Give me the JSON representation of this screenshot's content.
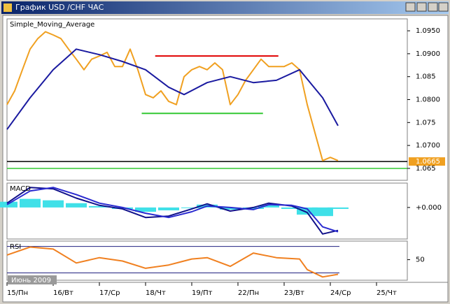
{
  "window": {
    "title": "График USD /CHF  ЧАС"
  },
  "chart_data": [
    {
      "type": "line",
      "label": "Simple_Moving_Average",
      "period_label": "Июнь 2009",
      "xlim": [
        0,
        208
      ],
      "xticks": [
        {
          "value": 0,
          "label": "15/Пн"
        },
        {
          "value": 24,
          "label": "16/Вт"
        },
        {
          "value": 48,
          "label": "17/Ср"
        },
        {
          "value": 72,
          "label": "18/Чт"
        },
        {
          "value": 96,
          "label": "19/Пт"
        },
        {
          "value": 120,
          "label": "22/Пн"
        },
        {
          "value": 144,
          "label": "23/Вт"
        },
        {
          "value": 168,
          "label": "24/Ср"
        },
        {
          "value": 192,
          "label": "25/Чт"
        }
      ],
      "ylim": [
        1.0624,
        1.0976
      ],
      "yticks": [
        {
          "value": 1.095,
          "label": "1.0950"
        },
        {
          "value": 1.09,
          "label": "1.0900"
        },
        1.085,
        {
          "value": 1.08,
          "label": "1.0800"
        },
        1.075,
        {
          "value": 1.07,
          "label": "1.0700"
        },
        1.065
      ],
      "last_price": 1.0665,
      "hlines": [
        {
          "y": 1.0665,
          "color": "#000000"
        },
        {
          "y": 1.065,
          "color": "#32c832"
        }
      ],
      "segments": [
        {
          "x": [
            77,
            141
          ],
          "y": 1.0895,
          "color": "#e00000"
        },
        {
          "x": [
            70,
            133
          ],
          "y": 1.077,
          "color": "#32c832"
        }
      ],
      "series": [
        {
          "color": "#f0a020",
          "x": [
            0,
            4,
            8,
            12,
            16,
            20,
            24,
            28,
            32,
            36,
            40,
            44,
            48,
            52,
            56,
            60,
            64,
            68,
            72,
            76,
            80,
            84,
            88,
            92,
            96,
            100,
            104,
            108,
            112,
            116,
            120,
            124,
            128,
            132,
            136,
            140,
            144,
            148,
            152,
            156,
            160,
            164,
            168,
            172
          ],
          "values": [
            1.0789,
            1.0819,
            1.0865,
            1.091,
            1.0933,
            1.0948,
            1.0941,
            1.0933,
            1.091,
            1.0888,
            1.0865,
            1.0888,
            1.0895,
            1.0903,
            1.0872,
            1.0872,
            1.091,
            1.0865,
            1.0811,
            1.0804,
            1.0819,
            1.0796,
            1.0789,
            1.085,
            1.0865,
            1.0872,
            1.0865,
            1.088,
            1.0865,
            1.0789,
            1.0811,
            1.0842,
            1.0865,
            1.0888,
            1.0872,
            1.0872,
            1.0872,
            1.088,
            1.0865,
            1.0789,
            1.0728,
            1.0667,
            1.0674,
            1.0667
          ]
        },
        {
          "name": "Simple_Moving_Average",
          "color": "#1a1aa0",
          "x": [
            0,
            12,
            24,
            36,
            48,
            60,
            72,
            84,
            92,
            104,
            116,
            128,
            140,
            152,
            164,
            172
          ],
          "values": [
            1.0735,
            1.0804,
            1.0865,
            1.091,
            1.0898,
            1.0883,
            1.0865,
            1.0827,
            1.0811,
            1.0837,
            1.085,
            1.0837,
            1.0842,
            1.0865,
            1.0804,
            1.0743
          ]
        }
      ]
    },
    {
      "type": "line",
      "label": "MACD",
      "ylim": [
        -0.0044,
        0.0034
      ],
      "yticks": [
        {
          "value": 0,
          "label": "+0.000"
        }
      ],
      "series": [
        {
          "type": "bar",
          "color": "#40e0e8",
          "x": [
            0,
            12,
            24,
            36,
            48,
            60,
            72,
            84,
            96,
            104,
            116,
            128,
            136,
            148,
            156,
            164,
            172
          ],
          "values": [
            0.0008,
            0.0012,
            0.001,
            0.0006,
            0.0002,
            -0.0002,
            -0.0006,
            -0.0004,
            -0.0001,
            0.0004,
            -0.0003,
            -0.0002,
            0.0003,
            -0.0002,
            -0.001,
            -0.0012,
            -0.0002
          ]
        },
        {
          "color": "#10108a",
          "x": [
            0,
            12,
            24,
            36,
            48,
            60,
            72,
            84,
            96,
            104,
            116,
            128,
            136,
            148,
            156,
            164,
            172
          ],
          "values": [
            0.0006,
            0.0028,
            0.0026,
            0.0013,
            0.0003,
            -0.0002,
            -0.0014,
            -0.0012,
            -0.0002,
            0.0005,
            -0.0005,
            0,
            0.0006,
            0.0002,
            -0.0007,
            -0.0037,
            -0.0032
          ]
        },
        {
          "color": "#2a2ad0",
          "x": [
            0,
            12,
            24,
            36,
            48,
            60,
            72,
            84,
            96,
            104,
            116,
            128,
            136,
            148,
            156,
            164,
            172
          ],
          "values": [
            0.0004,
            0.0023,
            0.0028,
            0.0018,
            0.0006,
            0,
            -0.0008,
            -0.0014,
            -0.0006,
            0.0002,
            0,
            -0.0003,
            0.0004,
            0.0003,
            -0.0002,
            -0.0027,
            -0.0034
          ]
        }
      ]
    },
    {
      "type": "line",
      "label": "RSI",
      "ylim": [
        19,
        78
      ],
      "yticks": [
        50
      ],
      "levels": [
        30,
        70
      ],
      "series": [
        {
          "color": "#f08020",
          "x": [
            0,
            12,
            24,
            36,
            48,
            60,
            72,
            84,
            96,
            104,
            116,
            128,
            140,
            152,
            156,
            164,
            172
          ],
          "values": [
            57,
            69,
            66,
            45,
            53,
            48,
            37,
            42,
            51,
            53,
            40,
            60,
            53,
            51,
            35,
            24,
            28
          ]
        }
      ]
    }
  ]
}
